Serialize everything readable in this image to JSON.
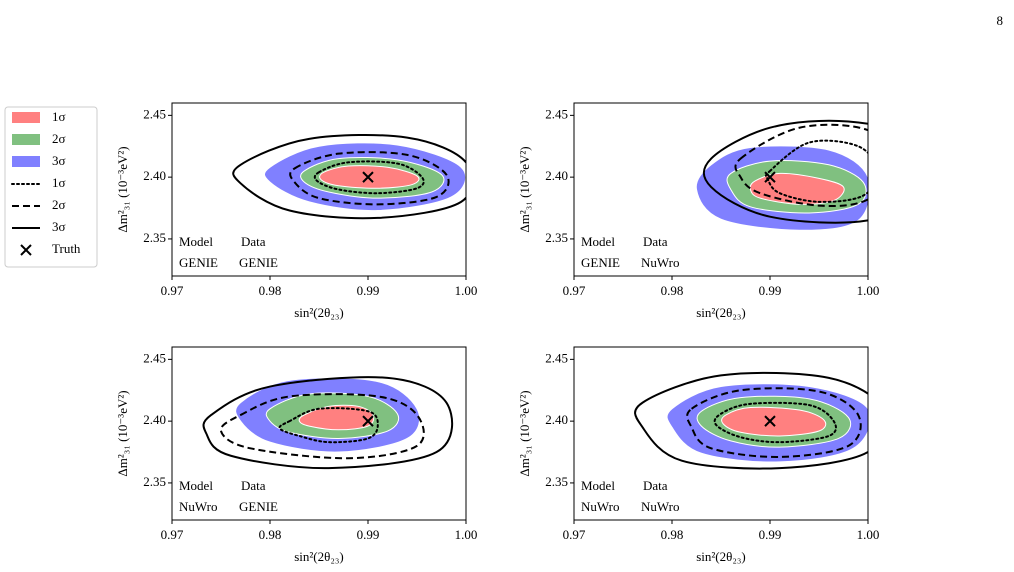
{
  "page_number": "8",
  "chart_data": [
    {
      "type": "contour",
      "xlabel": "sin²(2θ₂₃)",
      "ylabel": "Δm²₃₁ (10⁻³eV²)",
      "model_label": "Model",
      "data_label": "Data",
      "model": "GENIE",
      "data": "GENIE",
      "xlim": [
        0.97,
        1.0
      ],
      "ylim": [
        2.32,
        2.46
      ],
      "xticks": [
        0.97,
        0.98,
        0.99,
        {
          "value": 1.0,
          "label": "1.00"
        }
      ],
      "yticks": [
        2.35,
        {
          "value": 2.4,
          "label": "2.40"
        },
        2.45
      ],
      "truth": {
        "name": "Truth",
        "x": 0.99,
        "y": 2.4
      },
      "series": [
        {
          "name": "1σ",
          "color": "#ff8080",
          "style": "fill",
          "x": [
            0.9855,
            0.988,
            0.992,
            0.995,
            0.9945,
            0.991,
            0.987,
            0.9852
          ],
          "y": [
            2.404,
            2.409,
            2.408,
            2.401,
            2.394,
            2.391,
            2.393,
            2.398
          ]
        },
        {
          "name": "2σ",
          "color": "#80c080",
          "style": "fill",
          "x": [
            0.9835,
            0.987,
            0.993,
            0.9975,
            0.9965,
            0.991,
            0.986,
            0.9835
          ],
          "y": [
            2.405,
            2.415,
            2.414,
            2.402,
            2.388,
            2.383,
            2.388,
            2.396
          ]
        },
        {
          "name": "3σ",
          "color": "#8080ff",
          "style": "fill",
          "x": [
            0.98,
            0.985,
            0.993,
            0.9995,
            0.9985,
            0.991,
            0.984,
            0.98
          ],
          "y": [
            2.408,
            2.425,
            2.426,
            2.408,
            2.384,
            2.373,
            2.38,
            2.396
          ]
        },
        {
          "name": "1σ",
          "color": "#000000",
          "style": "dotted",
          "x": [
            0.985,
            0.988,
            0.993,
            0.9955,
            0.995,
            0.991,
            0.987,
            0.9848
          ],
          "y": [
            2.404,
            2.412,
            2.411,
            2.4,
            2.391,
            2.387,
            2.39,
            2.397
          ]
        },
        {
          "name": "2σ",
          "color": "#000000",
          "style": "dashed",
          "x": [
            0.9825,
            0.987,
            0.994,
            0.998,
            0.997,
            0.991,
            0.985,
            0.9825
          ],
          "y": [
            2.407,
            2.419,
            2.418,
            2.402,
            2.384,
            2.378,
            2.383,
            2.396
          ]
        },
        {
          "name": "3σ",
          "color": "#000000",
          "style": "solid",
          "x": [
            0.977,
            0.984,
            0.994,
            1.0,
            0.9995,
            0.991,
            0.982,
            0.977
          ],
          "y": [
            2.41,
            2.431,
            2.432,
            2.412,
            2.38,
            2.367,
            2.373,
            2.395
          ]
        }
      ]
    },
    {
      "type": "contour",
      "xlabel": "sin²(2θ₂₃)",
      "ylabel": "Δm²₃₁ (10⁻³eV²)",
      "model_label": "Model",
      "data_label": "Data",
      "model": "GENIE",
      "data": "NuWro",
      "xlim": [
        0.97,
        1.0
      ],
      "ylim": [
        2.32,
        2.46
      ],
      "xticks": [
        0.97,
        0.98,
        0.99,
        {
          "value": 1.0,
          "label": "1.00"
        }
      ],
      "yticks": [
        2.35,
        {
          "value": 2.4,
          "label": "2.40"
        },
        2.45
      ],
      "truth": {
        "name": "Truth",
        "x": 0.99,
        "y": 2.4
      },
      "series": [
        {
          "name": "1σ",
          "color": "#ff8080",
          "style": "fill",
          "x": [
            0.9885,
            0.991,
            0.995,
            0.9975,
            0.9965,
            0.993,
            0.989,
            0.988
          ],
          "y": [
            2.397,
            2.403,
            2.399,
            2.392,
            2.381,
            2.378,
            2.383,
            2.39
          ]
        },
        {
          "name": "2σ",
          "color": "#80c080",
          "style": "fill",
          "x": [
            0.986,
            0.99,
            0.996,
            0.9995,
            0.999,
            0.994,
            0.988,
            0.986
          ],
          "y": [
            2.403,
            2.413,
            2.41,
            2.396,
            2.378,
            2.371,
            2.376,
            2.39
          ]
        },
        {
          "name": "3σ",
          "color": "#8080ff",
          "style": "fill",
          "x": [
            0.984,
            0.988,
            0.996,
            1.0,
            0.999,
            0.993,
            0.985,
            0.9825
          ],
          "y": [
            2.41,
            2.424,
            2.422,
            2.4,
            2.365,
            2.357,
            2.366,
            2.39
          ]
        },
        {
          "name": "1σ",
          "color": "#000000",
          "style": "dotted",
          "x": [
            0.99,
            0.994,
            0.999,
            1.001,
            0.9995,
            0.995,
            0.991,
            0.9898
          ],
          "y": [
            2.405,
            2.428,
            2.425,
            2.405,
            2.385,
            2.38,
            2.387,
            2.398
          ]
        },
        {
          "name": "2σ",
          "color": "#000000",
          "style": "dashed",
          "x": [
            0.987,
            0.993,
            1.0,
            1.003,
            1.0,
            0.995,
            0.989,
            0.987
          ],
          "y": [
            2.415,
            2.44,
            2.438,
            2.41,
            2.382,
            2.377,
            2.387,
            2.4
          ]
        },
        {
          "name": "3σ",
          "color": "#000000",
          "style": "solid",
          "x": [
            0.984,
            0.99,
            0.998,
            1.005,
            1.006,
            1.0,
            0.99,
            0.984
          ],
          "y": [
            2.415,
            2.44,
            2.445,
            2.43,
            2.39,
            2.365,
            2.368,
            2.392
          ]
        }
      ]
    },
    {
      "type": "contour",
      "xlabel": "sin²(2θ₂₃)",
      "ylabel": "Δm²₃₁ (10⁻³eV²)",
      "model_label": "Model",
      "data_label": "Data",
      "model": "NuWro",
      "data": "GENIE",
      "xlim": [
        0.97,
        1.0
      ],
      "ylim": [
        2.32,
        2.46
      ],
      "xticks": [
        0.97,
        0.98,
        0.99,
        {
          "value": 1.0,
          "label": "1.00"
        }
      ],
      "yticks": [
        2.35,
        {
          "value": 2.4,
          "label": "2.40"
        },
        2.45
      ],
      "truth": {
        "name": "Truth",
        "x": 0.99,
        "y": 2.4
      },
      "series": [
        {
          "name": "1σ",
          "color": "#ff8080",
          "style": "fill",
          "x": [
            0.9835,
            0.986,
            0.989,
            0.9905,
            0.99,
            0.987,
            0.984,
            0.983
          ],
          "y": [
            2.405,
            2.412,
            2.412,
            2.405,
            2.396,
            2.393,
            2.396,
            2.4
          ]
        },
        {
          "name": "2σ",
          "color": "#80c080",
          "style": "fill",
          "x": [
            0.98,
            0.984,
            0.99,
            0.993,
            0.992,
            0.987,
            0.982,
            0.98
          ],
          "y": [
            2.41,
            2.422,
            2.42,
            2.406,
            2.392,
            2.386,
            2.391,
            2.4
          ]
        },
        {
          "name": "3σ",
          "color": "#8080ff",
          "style": "fill",
          "x": [
            0.977,
            0.982,
            0.991,
            0.995,
            0.994,
            0.987,
            0.98,
            0.977
          ],
          "y": [
            2.415,
            2.433,
            2.432,
            2.41,
            2.386,
            2.375,
            2.383,
            2.4
          ]
        },
        {
          "name": "1σ",
          "color": "#000000",
          "style": "dotted",
          "x": [
            0.982,
            0.985,
            0.99,
            0.991,
            0.99,
            0.986,
            0.983,
            0.981
          ],
          "y": [
            2.4,
            2.41,
            2.408,
            2.397,
            2.386,
            2.383,
            2.388,
            2.394
          ]
        },
        {
          "name": "2σ",
          "color": "#000000",
          "style": "dashed",
          "x": [
            0.977,
            0.982,
            0.991,
            0.995,
            0.995,
            0.988,
            0.978,
            0.975
          ],
          "y": [
            2.405,
            2.42,
            2.42,
            2.405,
            2.38,
            2.37,
            2.378,
            2.392
          ]
        },
        {
          "name": "3σ",
          "color": "#000000",
          "style": "solid",
          "x": [
            0.974,
            0.98,
            0.992,
            0.998,
            0.997,
            0.986,
            0.976,
            0.9735
          ],
          "y": [
            2.405,
            2.428,
            2.435,
            2.415,
            2.375,
            2.362,
            2.372,
            2.39
          ]
        }
      ]
    },
    {
      "type": "contour",
      "xlabel": "sin²(2θ₂₃)",
      "ylabel": "Δm²₃₁ (10⁻³eV²)",
      "model_label": "Model",
      "data_label": "Data",
      "model": "NuWro",
      "data": "NuWro",
      "xlim": [
        0.97,
        1.0
      ],
      "ylim": [
        2.32,
        2.46
      ],
      "xticks": [
        0.97,
        0.98,
        0.99,
        {
          "value": 1.0,
          "label": "1.00"
        }
      ],
      "yticks": [
        2.35,
        {
          "value": 2.4,
          "label": "2.40"
        },
        2.45
      ],
      "truth": {
        "name": "Truth",
        "x": 0.99,
        "y": 2.4
      },
      "series": [
        {
          "name": "1σ",
          "color": "#ff8080",
          "style": "fill",
          "x": [
            0.9855,
            0.988,
            0.993,
            0.9955,
            0.995,
            0.991,
            0.987,
            0.9852
          ],
          "y": [
            2.405,
            2.411,
            2.409,
            2.401,
            2.392,
            2.388,
            2.391,
            2.398
          ]
        },
        {
          "name": "2σ",
          "color": "#80c080",
          "style": "fill",
          "x": [
            0.983,
            0.987,
            0.994,
            0.998,
            0.997,
            0.991,
            0.986,
            0.983
          ],
          "y": [
            2.408,
            2.419,
            2.418,
            2.403,
            2.386,
            2.379,
            2.384,
            2.396
          ]
        },
        {
          "name": "3σ",
          "color": "#8080ff",
          "style": "fill",
          "x": [
            0.98,
            0.985,
            0.994,
            1.0,
            0.9985,
            0.991,
            0.983,
            0.98
          ],
          "y": [
            2.41,
            2.428,
            2.428,
            2.41,
            2.378,
            2.367,
            2.374,
            2.395
          ]
        },
        {
          "name": "1σ",
          "color": "#000000",
          "style": "dotted",
          "x": [
            0.985,
            0.988,
            0.994,
            0.9965,
            0.996,
            0.991,
            0.987,
            0.9845
          ],
          "y": [
            2.406,
            2.414,
            2.413,
            2.4,
            2.388,
            2.383,
            2.387,
            2.397
          ]
        },
        {
          "name": "2σ",
          "color": "#000000",
          "style": "dashed",
          "x": [
            0.982,
            0.987,
            0.995,
            0.999,
            0.998,
            0.991,
            0.984,
            0.982
          ],
          "y": [
            2.41,
            2.425,
            2.424,
            2.405,
            2.38,
            2.371,
            2.378,
            2.395
          ]
        },
        {
          "name": "3σ",
          "color": "#000000",
          "style": "solid",
          "x": [
            0.977,
            0.985,
            0.996,
            1.0015,
            1.0,
            0.991,
            0.981,
            0.977
          ],
          "y": [
            2.415,
            2.437,
            2.435,
            2.41,
            2.375,
            2.362,
            2.368,
            2.395
          ]
        }
      ]
    }
  ]
}
